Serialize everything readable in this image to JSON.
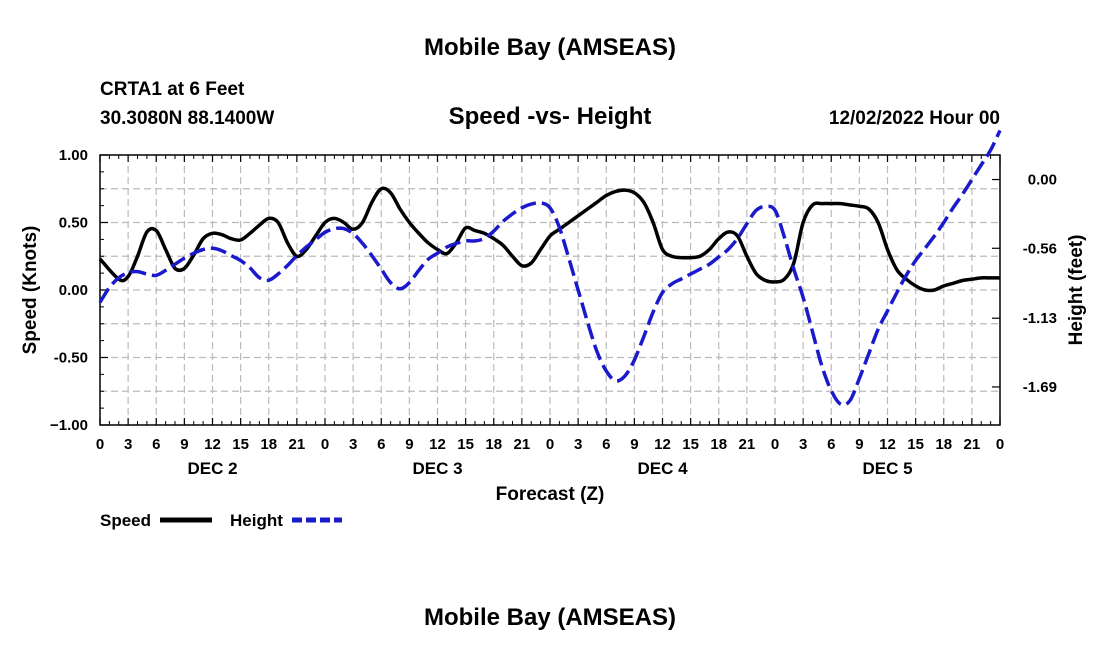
{
  "header": {
    "title_top": "Mobile Bay (AMSEAS)",
    "station": "CRTA1 at 6 Feet",
    "coords": "30.3080N  88.1400W",
    "chart_title": "Speed -vs- Height",
    "datetime": "12/02/2022 Hour 00",
    "title_bottom": "Mobile Bay (AMSEAS)"
  },
  "legend": {
    "speed_label": "Speed",
    "height_label": "Height"
  },
  "chart_data": {
    "type": "line",
    "title": "Speed -vs- Height",
    "xlabel": "Forecast (Z)",
    "ylabel": "Speed (Knots)",
    "y2label": "Height (feet)",
    "x_unit": "hours from 12/02/2022 00Z",
    "xlim": [
      0,
      96
    ],
    "ylim": [
      -1.0,
      1.0
    ],
    "y2lim": [
      -2.0,
      0.2
    ],
    "x_tick_hours": [
      0,
      3,
      6,
      9,
      12,
      15,
      18,
      21,
      24,
      27,
      30,
      33,
      36,
      39,
      42,
      45,
      48,
      51,
      54,
      57,
      60,
      63,
      66,
      69,
      72,
      75,
      78,
      81,
      84,
      87,
      90,
      93,
      96
    ],
    "x_tick_labels": [
      "0",
      "3",
      "6",
      "9",
      "12",
      "15",
      "18",
      "21",
      "0",
      "3",
      "6",
      "9",
      "12",
      "15",
      "18",
      "21",
      "0",
      "3",
      "6",
      "9",
      "12",
      "15",
      "18",
      "21",
      "0",
      "3",
      "6",
      "9",
      "12",
      "15",
      "18",
      "21",
      "0"
    ],
    "day_labels": [
      {
        "text": "DEC 2",
        "hour": 12
      },
      {
        "text": "DEC 3",
        "hour": 36
      },
      {
        "text": "DEC 4",
        "hour": 60
      },
      {
        "text": "DEC 5",
        "hour": 84
      }
    ],
    "y_ticks": [
      {
        "value": 1.0,
        "label": "1.00"
      },
      {
        "value": 0.5,
        "label": "0.50"
      },
      {
        "value": 0.0,
        "label": "0.00"
      },
      {
        "value": -0.5,
        "label": "-0.50"
      },
      {
        "value": -1.0,
        "label": "−1.00"
      }
    ],
    "y2_ticks": [
      {
        "value": 0.0,
        "label": "0.00"
      },
      {
        "value": -0.56,
        "label": "-0.56"
      },
      {
        "value": -1.13,
        "label": "-1.13"
      },
      {
        "value": -1.69,
        "label": "-1.69"
      }
    ],
    "series": [
      {
        "name": "Speed",
        "axis": "left",
        "color": "#000000",
        "dash": "solid",
        "x": [
          0,
          2,
          3,
          4,
          5,
          6,
          7,
          8,
          9,
          10,
          11,
          12,
          13,
          14,
          15,
          16,
          17,
          18,
          19,
          20,
          21,
          22,
          23,
          24,
          25,
          26,
          27,
          28,
          29,
          30,
          31,
          32,
          33,
          34,
          35,
          36,
          37,
          38,
          39,
          40,
          41,
          42,
          43,
          44,
          45,
          46,
          47,
          48,
          49,
          50,
          51,
          52,
          53,
          54,
          55,
          56,
          57,
          58,
          59,
          60,
          61,
          62,
          63,
          64,
          65,
          66,
          67,
          68,
          69,
          70,
          71,
          72,
          73,
          74,
          75,
          76,
          77,
          78,
          79,
          80,
          81,
          82,
          83,
          84,
          85,
          86,
          87,
          88,
          89,
          90,
          91,
          92,
          93,
          94,
          95,
          96
        ],
        "y": [
          0.23,
          0.08,
          0.1,
          0.25,
          0.43,
          0.44,
          0.3,
          0.16,
          0.16,
          0.26,
          0.38,
          0.42,
          0.41,
          0.38,
          0.37,
          0.42,
          0.48,
          0.53,
          0.5,
          0.35,
          0.25,
          0.3,
          0.4,
          0.5,
          0.53,
          0.5,
          0.45,
          0.5,
          0.65,
          0.75,
          0.72,
          0.6,
          0.5,
          0.42,
          0.35,
          0.3,
          0.27,
          0.35,
          0.46,
          0.44,
          0.42,
          0.38,
          0.33,
          0.25,
          0.18,
          0.2,
          0.3,
          0.4,
          0.45,
          0.5,
          0.55,
          0.6,
          0.65,
          0.7,
          0.73,
          0.74,
          0.72,
          0.65,
          0.5,
          0.3,
          0.25,
          0.24,
          0.24,
          0.25,
          0.3,
          0.38,
          0.43,
          0.4,
          0.25,
          0.12,
          0.07,
          0.06,
          0.08,
          0.2,
          0.5,
          0.63,
          0.64,
          0.64,
          0.64,
          0.63,
          0.62,
          0.6,
          0.5,
          0.3,
          0.15,
          0.08,
          0.03,
          0.0,
          0.0,
          0.03,
          0.05,
          0.07,
          0.08,
          0.09,
          0.09,
          0.09
        ]
      },
      {
        "name": "Height",
        "axis": "right",
        "color": "#1a1acc",
        "dash": "dashed",
        "x": [
          0,
          1,
          2,
          3,
          4,
          5,
          6,
          7,
          8,
          9,
          10,
          11,
          12,
          13,
          14,
          15,
          16,
          17,
          18,
          19,
          20,
          21,
          22,
          23,
          24,
          25,
          26,
          27,
          28,
          29,
          30,
          31,
          32,
          33,
          34,
          35,
          36,
          37,
          38,
          39,
          40,
          41,
          42,
          43,
          44,
          45,
          46,
          47,
          48,
          49,
          50,
          51,
          52,
          53,
          54,
          55,
          56,
          57,
          58,
          59,
          60,
          61,
          62,
          63,
          64,
          65,
          66,
          67,
          68,
          69,
          70,
          71,
          72,
          73,
          74,
          75,
          76,
          77,
          78,
          79,
          80,
          81,
          82,
          83,
          84,
          85,
          86,
          87,
          88,
          89,
          90,
          91,
          92,
          93,
          94,
          95,
          96
        ],
        "y": [
          -1.0,
          -0.88,
          -0.8,
          -0.76,
          -0.75,
          -0.77,
          -0.78,
          -0.74,
          -0.69,
          -0.64,
          -0.6,
          -0.57,
          -0.56,
          -0.58,
          -0.62,
          -0.66,
          -0.72,
          -0.8,
          -0.82,
          -0.77,
          -0.7,
          -0.62,
          -0.55,
          -0.49,
          -0.43,
          -0.4,
          -0.4,
          -0.44,
          -0.52,
          -0.62,
          -0.73,
          -0.84,
          -0.89,
          -0.84,
          -0.74,
          -0.65,
          -0.6,
          -0.55,
          -0.52,
          -0.5,
          -0.5,
          -0.48,
          -0.42,
          -0.34,
          -0.28,
          -0.23,
          -0.2,
          -0.19,
          -0.23,
          -0.39,
          -0.64,
          -0.9,
          -1.16,
          -1.4,
          -1.56,
          -1.64,
          -1.6,
          -1.47,
          -1.28,
          -1.08,
          -0.92,
          -0.85,
          -0.81,
          -0.77,
          -0.73,
          -0.69,
          -0.63,
          -0.57,
          -0.48,
          -0.36,
          -0.25,
          -0.22,
          -0.25,
          -0.47,
          -0.73,
          -0.96,
          -1.24,
          -1.52,
          -1.72,
          -1.83,
          -1.8,
          -1.62,
          -1.42,
          -1.22,
          -1.07,
          -0.92,
          -0.78,
          -0.66,
          -0.56,
          -0.46,
          -0.35,
          -0.23,
          -0.12,
          0.0,
          0.12,
          0.24,
          0.4
        ]
      }
    ]
  }
}
